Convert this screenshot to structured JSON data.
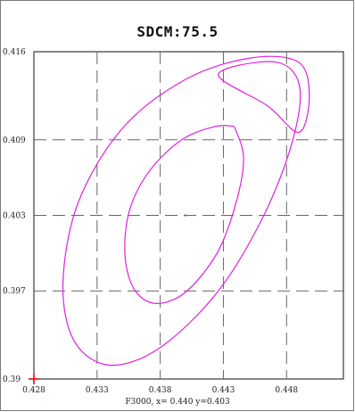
{
  "chart_data": {
    "type": "line",
    "title": "SDCM:75.5",
    "xlim": [
      0.428,
      0.4525
    ],
    "ylim": [
      0.39,
      0.416
    ],
    "x_ticks": [
      "0.428",
      "0.433",
      "0.438",
      "0.443",
      "0.448"
    ],
    "x_tick_values": [
      0.428,
      0.433,
      0.438,
      0.443,
      0.448
    ],
    "y_ticks": [
      "0.416",
      "0.409",
      "0.403",
      "0.397",
      "0.39"
    ],
    "y_tick_values": [
      0.416,
      0.409,
      0.403,
      0.397,
      0.39
    ],
    "grid": true,
    "series": [
      {
        "color": "#e020e0",
        "x": [
          0.4426,
          0.447,
          0.449,
          0.4485,
          0.4462,
          0.4426,
          0.438,
          0.434,
          0.4312,
          0.4303,
          0.4315,
          0.435,
          0.44,
          0.4451,
          0.4489,
          0.4498,
          0.449,
          0.4465,
          0.4426
        ],
        "y": [
          0.4142,
          0.4152,
          0.4134,
          0.409,
          0.403,
          0.397,
          0.3925,
          0.3911,
          0.393,
          0.3976,
          0.404,
          0.4099,
          0.4138,
          0.4155,
          0.4152,
          0.4126,
          0.4096,
          0.4117,
          0.4142
        ]
      },
      {
        "color": "#e020e0",
        "x": [
          0.444,
          0.4446,
          0.444,
          0.4425,
          0.44,
          0.4376,
          0.4359,
          0.4352,
          0.4356,
          0.4372,
          0.4397,
          0.4421,
          0.4436,
          0.444
        ],
        "y": [
          0.4097,
          0.4075,
          0.404,
          0.4,
          0.3969,
          0.396,
          0.3972,
          0.4,
          0.4035,
          0.4066,
          0.409,
          0.41,
          0.4101,
          0.4097
        ]
      }
    ],
    "center_point": {
      "x": 0.44,
      "y": 0.403,
      "color": "#e020e0"
    },
    "origin_marker": {
      "x": 0.428,
      "y": 0.39,
      "color": "#e00000"
    },
    "status_text": "F3000,  x= 0.440  y=0.403"
  }
}
